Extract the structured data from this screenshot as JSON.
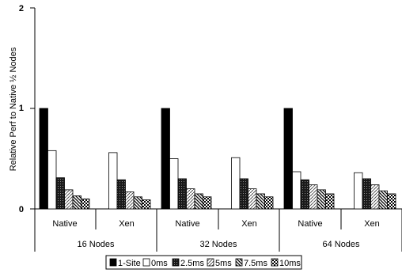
{
  "chart_data": {
    "type": "bar",
    "title": "",
    "ylabel": "Relative Perf  to Native ½ Nodes",
    "ylim": [
      0,
      2
    ],
    "yticks": [
      "0",
      "1",
      "2"
    ],
    "grid": false,
    "legend_position": "bottom",
    "groups": [
      "16 Nodes",
      "32 Nodes",
      "64 Nodes"
    ],
    "subcategories": [
      "Native",
      "Xen"
    ],
    "series": [
      {
        "name": "1-Site",
        "pattern": "solid-black",
        "values": [
          1.0,
          null,
          1.0,
          null,
          1.0,
          null
        ]
      },
      {
        "name": "0ms",
        "pattern": "white",
        "values": [
          0.58,
          0.56,
          0.5,
          0.51,
          0.37,
          0.36
        ]
      },
      {
        "name": "2.5ms",
        "pattern": "dark-dots",
        "values": [
          0.31,
          0.29,
          0.3,
          0.3,
          0.29,
          0.3
        ]
      },
      {
        "name": "5ms",
        "pattern": "light-hatch",
        "values": [
          0.19,
          0.17,
          0.2,
          0.2,
          0.24,
          0.24
        ]
      },
      {
        "name": "7.5ms",
        "pattern": "diagonal",
        "values": [
          0.13,
          0.12,
          0.15,
          0.15,
          0.19,
          0.18
        ]
      },
      {
        "name": "10ms",
        "pattern": "checker",
        "values": [
          0.1,
          0.09,
          0.12,
          0.12,
          0.15,
          0.15
        ]
      }
    ]
  }
}
